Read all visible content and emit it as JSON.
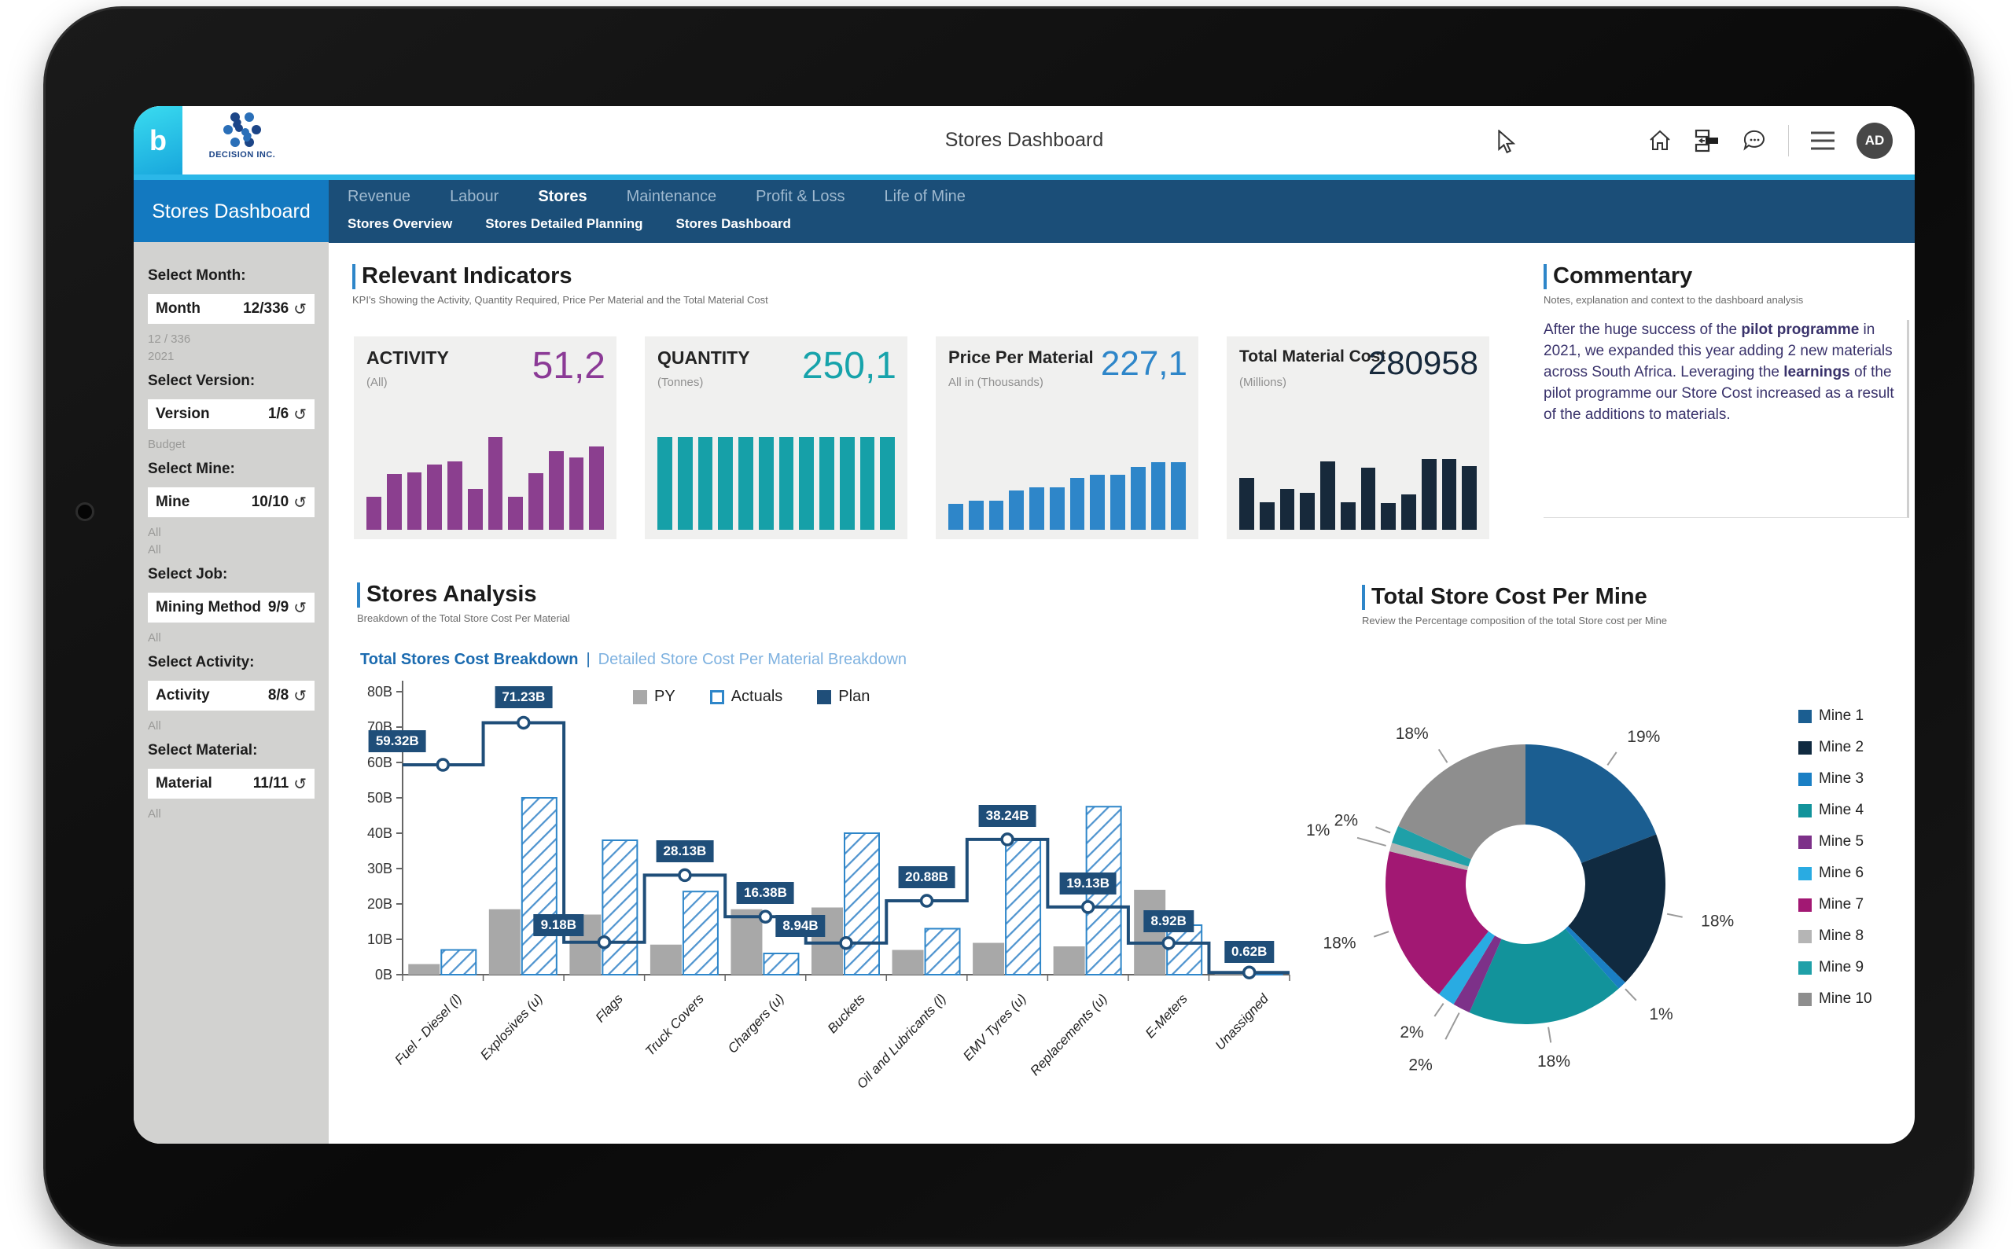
{
  "header": {
    "title": "Stores Dashboard",
    "brand": "DECISION INC.",
    "logo_letter": "b",
    "avatar_initials": "AD",
    "icons": [
      "home-icon",
      "sitemap-icon",
      "chat-icon",
      "menu-icon"
    ]
  },
  "nav": {
    "section_title": "Stores Dashboard",
    "tabs": [
      {
        "label": "Revenue",
        "active": false
      },
      {
        "label": "Labour",
        "active": false
      },
      {
        "label": "Stores",
        "active": true
      },
      {
        "label": "Maintenance",
        "active": false
      },
      {
        "label": "Profit & Loss",
        "active": false
      },
      {
        "label": "Life of Mine",
        "active": false
      }
    ],
    "subtabs": [
      {
        "label": "Stores Overview"
      },
      {
        "label": "Stores Detailed Planning"
      },
      {
        "label": "Stores Dashboard"
      }
    ]
  },
  "sidebar": {
    "filters": [
      {
        "label": "Select Month:",
        "field": "Month",
        "count": "12/336",
        "below": [
          "12 / 336",
          "2021"
        ]
      },
      {
        "label": "Select Version:",
        "field": "Version",
        "count": "1/6",
        "below": [
          "Budget"
        ]
      },
      {
        "label": "Select Mine:",
        "field": "Mine",
        "count": "10/10",
        "below": [
          "All",
          "All"
        ]
      },
      {
        "label": "Select Job:",
        "field": "Mining Method",
        "count": "9/9",
        "below": [
          "All"
        ]
      },
      {
        "label": "Select Activity:",
        "field": "Activity",
        "count": "8/8",
        "below": [
          "All"
        ]
      },
      {
        "label": "Select Material:",
        "field": "Material",
        "count": "11/11",
        "below": [
          "All"
        ]
      }
    ]
  },
  "indicators": {
    "title": "Relevant Indicators",
    "subtitle": "KPI's Showing the Activity, Quantity Required, Price Per Material and the Total Material Cost",
    "cards": [
      {
        "name": "ACTIVITY",
        "unit": "(All)",
        "value": "51,2",
        "value_color": "#8b3a96",
        "bar_color": "#8b3f8f",
        "bars": [
          36,
          60,
          62,
          70,
          74,
          44,
          100,
          36,
          61,
          85,
          78,
          90
        ]
      },
      {
        "name": "QUANTITY",
        "unit": "(Tonnes)",
        "value": "250,1",
        "value_color": "#17a3ab",
        "bar_color": "#16a0a8",
        "bars": [
          100,
          100,
          100,
          100,
          100,
          100,
          100,
          100,
          100,
          100,
          100,
          100
        ]
      },
      {
        "name": "Price Per Material",
        "unit": "All in (Thousands)",
        "value": "227,1",
        "value_color": "#2e86c9",
        "bar_color": "#2e86c9",
        "bars": [
          28,
          31,
          31,
          42,
          46,
          46,
          56,
          59,
          59,
          68,
          73,
          73
        ]
      },
      {
        "name": "Total Material Cost",
        "unit": "(Millions)",
        "value": "280958",
        "value_color": "#17293b",
        "bar_color": "#17293b",
        "bars": [
          56,
          30,
          44,
          40,
          74,
          30,
          67,
          29,
          38,
          76,
          76,
          69
        ]
      }
    ]
  },
  "commentary": {
    "title": "Commentary",
    "subtitle": "Notes, explanation and context to the dashboard analysis",
    "paragraph": [
      {
        "text": "After the huge success of the ",
        "bold": false
      },
      {
        "text": "pilot programme",
        "bold": true
      },
      {
        "text": " in 2021, we expanded this year adding 2 new materials across South Africa. Leveraging the ",
        "bold": false
      },
      {
        "text": "learnings",
        "bold": true
      },
      {
        "text": " of the pilot programme our Store Cost increased as a result of the additions to materials.",
        "bold": false
      }
    ]
  },
  "stores_analysis": {
    "title": "Stores Analysis",
    "subtitle": "Breakdown of the Total Store Cost Per Material",
    "links": {
      "active": "Total Stores Cost Breakdown",
      "separator": "|",
      "inactive": "Detailed Store Cost Per Material Breakdown"
    },
    "chart_data": {
      "type": "bar",
      "categories": [
        "Fuel - Diesel (l)",
        "Explosives (u)",
        "Flags",
        "Truck Covers",
        "Chargers (u)",
        "Buckets",
        "Oil and Lubricants (l)",
        "EMV Tyres (u)",
        "Replacements (u)",
        "E-Meters",
        "Unassigned"
      ],
      "series": [
        {
          "name": "PY",
          "type": "bar",
          "style": "solid",
          "color": "#a8a8a8",
          "values": [
            3,
            18.5,
            17,
            8.5,
            18.5,
            19,
            7,
            9,
            8,
            24,
            0.5
          ]
        },
        {
          "name": "Actuals",
          "type": "bar",
          "style": "hatched",
          "color": "#2e86c9",
          "values": [
            7,
            50,
            38,
            23.5,
            6,
            40,
            13,
            38,
            47.5,
            14,
            0.6
          ]
        },
        {
          "name": "Plan",
          "type": "step-line",
          "color": "#1f4e79",
          "values": [
            59.32,
            71.23,
            9.18,
            28.13,
            16.38,
            8.94,
            20.88,
            38.24,
            19.13,
            8.92,
            0.62
          ],
          "labels": [
            "59.32B",
            "71.23B",
            "9.18B",
            "28.13B",
            "16.38B",
            "8.94B",
            "20.88B",
            "38.24B",
            "19.13B",
            "8.92B",
            "0.62B"
          ]
        }
      ],
      "ylim": [
        0,
        80
      ],
      "yticks": [
        "0B",
        "10B",
        "20B",
        "30B",
        "40B",
        "50B",
        "60B",
        "70B",
        "80B"
      ],
      "legend_position": "top",
      "grid": false
    }
  },
  "store_cost_per_mine": {
    "title": "Total Store Cost Per Mine",
    "subtitle": "Review the Percentage composition of the total Store cost per Mine",
    "chart_data": {
      "type": "pie",
      "donut": true,
      "slices": [
        {
          "label": "Mine 1",
          "value": 19,
          "color": "#1b5e91"
        },
        {
          "label": "Mine 2",
          "value": 18,
          "color": "#102a40"
        },
        {
          "label": "Mine 3",
          "value": 1,
          "color": "#1a7fc4"
        },
        {
          "label": "Mine 4",
          "value": 18,
          "color": "#12939b"
        },
        {
          "label": "Mine 5",
          "value": 2,
          "color": "#7d3189"
        },
        {
          "label": "Mine 6",
          "value": 2,
          "color": "#29abe2"
        },
        {
          "label": "Mine 7",
          "value": 18,
          "color": "#a21873"
        },
        {
          "label": "Mine 8",
          "value": 1,
          "color": "#b5b5b5"
        },
        {
          "label": "Mine 9",
          "value": 2,
          "color": "#1fa0a8"
        },
        {
          "label": "Mine 10",
          "value": 18,
          "color": "#8e8e8e"
        }
      ],
      "legend_position": "right"
    }
  },
  "colors": {
    "nav": "#1b4e78",
    "nav_active_block": "#1379c0",
    "accent_cyan": "#2bb7e8",
    "accent_blue": "#2e86c9",
    "plan_navy": "#1f4e79",
    "sidebar_gray": "#d2d2d0"
  }
}
